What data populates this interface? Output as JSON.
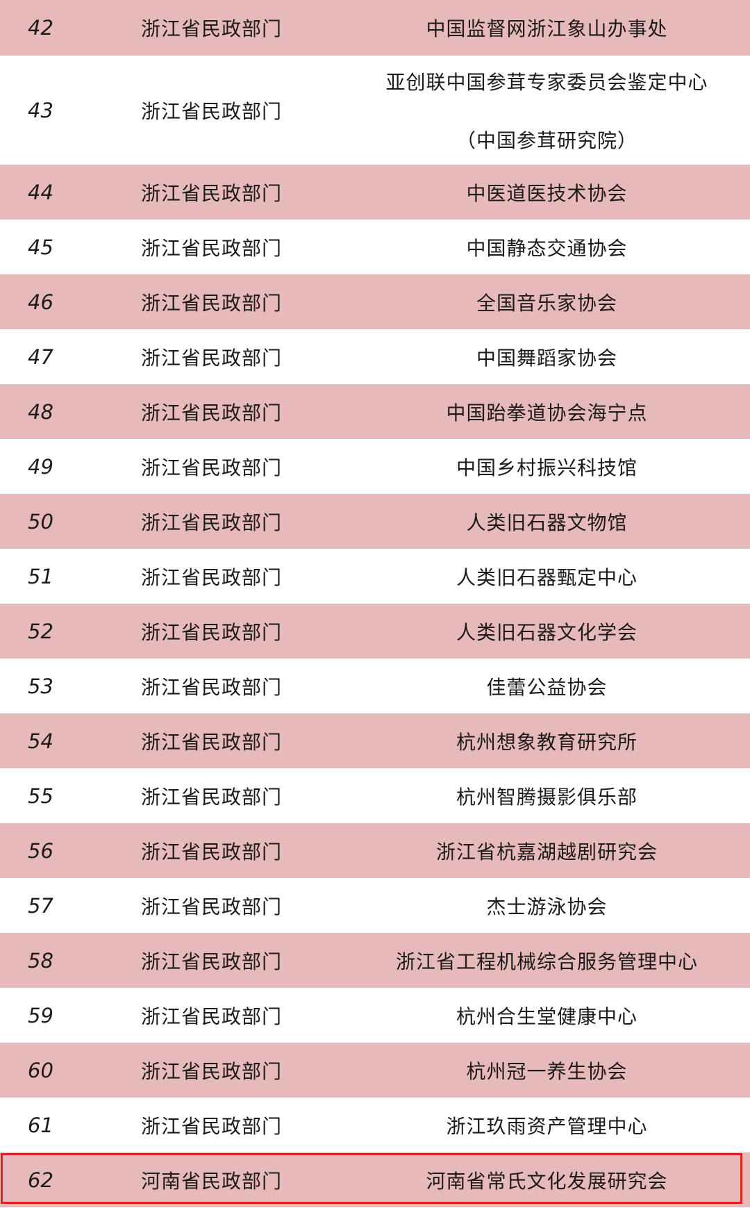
{
  "highlight_color": "#e02020",
  "row_colors": {
    "pink": "#e6b9ba",
    "white": "#ffffff"
  },
  "rows": [
    {
      "no": "42",
      "dept": "浙江省民政部门",
      "name": "中国监督网浙江象山办事处"
    },
    {
      "no": "43",
      "dept": "浙江省民政部门",
      "name": "亚创联中国参茸专家委员会鉴定中心",
      "name_line2": "（中国参茸研究院）"
    },
    {
      "no": "44",
      "dept": "浙江省民政部门",
      "name": "中医道医技术协会"
    },
    {
      "no": "45",
      "dept": "浙江省民政部门",
      "name": "中国静态交通协会"
    },
    {
      "no": "46",
      "dept": "浙江省民政部门",
      "name": "全国音乐家协会"
    },
    {
      "no": "47",
      "dept": "浙江省民政部门",
      "name": "中国舞蹈家协会"
    },
    {
      "no": "48",
      "dept": "浙江省民政部门",
      "name": "中国跆拳道协会海宁点"
    },
    {
      "no": "49",
      "dept": "浙江省民政部门",
      "name": "中国乡村振兴科技馆"
    },
    {
      "no": "50",
      "dept": "浙江省民政部门",
      "name": "人类旧石器文物馆"
    },
    {
      "no": "51",
      "dept": "浙江省民政部门",
      "name": "人类旧石器甄定中心"
    },
    {
      "no": "52",
      "dept": "浙江省民政部门",
      "name": "人类旧石器文化学会"
    },
    {
      "no": "53",
      "dept": "浙江省民政部门",
      "name": "佳蕾公益协会"
    },
    {
      "no": "54",
      "dept": "浙江省民政部门",
      "name": "杭州想象教育研究所"
    },
    {
      "no": "55",
      "dept": "浙江省民政部门",
      "name": "杭州智腾摄影俱乐部"
    },
    {
      "no": "56",
      "dept": "浙江省民政部门",
      "name": "浙江省杭嘉湖越剧研究会"
    },
    {
      "no": "57",
      "dept": "浙江省民政部门",
      "name": "杰士游泳协会"
    },
    {
      "no": "58",
      "dept": "浙江省民政部门",
      "name": "浙江省工程机械综合服务管理中心"
    },
    {
      "no": "59",
      "dept": "浙江省民政部门",
      "name": "杭州合生堂健康中心"
    },
    {
      "no": "60",
      "dept": "浙江省民政部门",
      "name": "杭州冠一养生协会"
    },
    {
      "no": "61",
      "dept": "浙江省民政部门",
      "name": "浙江玖雨资产管理中心"
    },
    {
      "no": "62",
      "dept": "河南省民政部门",
      "name": "河南省常氏文化发展研究会",
      "highlighted": true
    }
  ]
}
